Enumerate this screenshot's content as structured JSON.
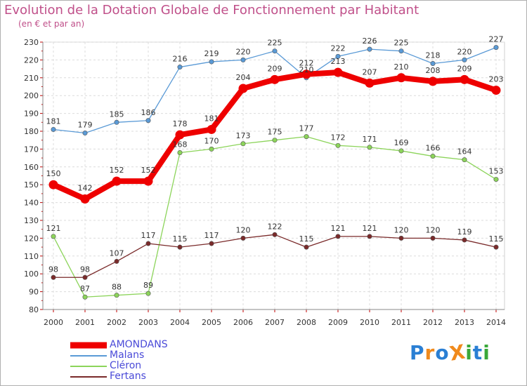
{
  "header": {
    "title": "Evolution de la Dotation Globale de Fonctionnement par Habitant",
    "subtitle": "(en € et par an)"
  },
  "brand": {
    "logo_text": "ProXiti",
    "letters": [
      "P",
      "r",
      "o",
      "X",
      "i",
      "t",
      "i"
    ],
    "colors": [
      "#2a7fd4",
      "#f08a1c",
      "#2a7fd4",
      "#f08a1c",
      "#3aa83a",
      "#2a7fd4",
      "#3aa83a"
    ]
  },
  "chart_data": {
    "type": "line",
    "title": "Evolution de la Dotation Globale de Fonctionnement par Habitant",
    "subtitle": "(en € et par an)",
    "xlabel": "",
    "ylabel": "",
    "ylim": [
      80,
      230
    ],
    "y_ticks": [
      80,
      90,
      100,
      110,
      120,
      130,
      140,
      150,
      160,
      170,
      180,
      190,
      200,
      210,
      220,
      230
    ],
    "grid": true,
    "legend_position": "bottom-left",
    "x": [
      "2000",
      "2001",
      "2002",
      "2003",
      "2004",
      "2005",
      "2006",
      "2007",
      "2008",
      "2009",
      "2010",
      "2011",
      "2012",
      "2013",
      "2014"
    ],
    "series": [
      {
        "name": "Malans",
        "color": "#5a9ad6",
        "values": [
          181,
          179,
          185,
          186,
          216,
          219,
          220,
          225,
          210,
          222,
          226,
          225,
          218,
          220,
          227
        ]
      },
      {
        "name": "Cléron",
        "color": "#8cd45a",
        "values": [
          121,
          87,
          88,
          89,
          168,
          170,
          173,
          175,
          177,
          172,
          171,
          169,
          166,
          164,
          153
        ]
      },
      {
        "name": "Fertans",
        "color": "#7a2a2a",
        "values": [
          98,
          98,
          107,
          117,
          115,
          117,
          120,
          122,
          115,
          121,
          121,
          120,
          120,
          119,
          115
        ]
      },
      {
        "name": "AMONDANS",
        "color": "#ee0000",
        "values": [
          150,
          142,
          152,
          152,
          178,
          181,
          204,
          209,
          212,
          213,
          207,
          210,
          208,
          209,
          203
        ]
      }
    ],
    "legend_order": [
      "AMONDANS",
      "Malans",
      "Cléron",
      "Fertans"
    ]
  }
}
